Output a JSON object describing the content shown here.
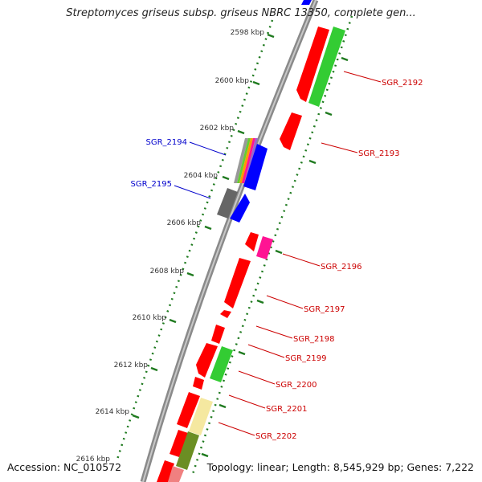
{
  "title": "Streptomyces griseus subsp. griseus NBRC 13350, complete gen...",
  "accession": "Accession: NC_010572",
  "topology": "Topology: linear; Length: 8,545,929 bp; Genes: 7,222",
  "tick_labels": [
    "2598 kbp",
    "2600 kbp",
    "2602 kbp",
    "2604 kbp",
    "2606 kbp",
    "2608 kbp",
    "2610 kbp",
    "2612 kbp",
    "2614 kbp",
    "2616 kbp"
  ],
  "gene_labels": [
    {
      "name": "SGR_2192",
      "strand": "plus",
      "color": "#cc0000"
    },
    {
      "name": "SGR_2193",
      "strand": "plus",
      "color": "#cc0000"
    },
    {
      "name": "SGR_2194",
      "strand": "minus",
      "color": "#0000cc"
    },
    {
      "name": "SGR_2195",
      "strand": "minus",
      "color": "#0000cc"
    },
    {
      "name": "SGR_2196",
      "strand": "plus",
      "color": "#cc0000"
    },
    {
      "name": "SGR_2197",
      "strand": "plus",
      "color": "#cc0000"
    },
    {
      "name": "SGR_2198",
      "strand": "plus",
      "color": "#cc0000"
    },
    {
      "name": "SGR_2199",
      "strand": "plus",
      "color": "#cc0000"
    },
    {
      "name": "SGR_2200",
      "strand": "plus",
      "color": "#cc0000"
    },
    {
      "name": "SGR_2201",
      "strand": "plus",
      "color": "#cc0000"
    },
    {
      "name": "SGR_2202",
      "strand": "plus",
      "color": "#cc0000"
    }
  ],
  "colors": {
    "backbone": "#8a8a8a",
    "tick_dots": "#1f7a1f",
    "forward_gene": "#ff0000",
    "reverse_gene": "#0000ff",
    "green_gene": "#33cc33",
    "magenta_gene": "#ff1493",
    "gray_gene": "#666666",
    "yellow_gene": "#f5e8a0",
    "olive_gene": "#6b8e23",
    "pink_gene": "#f08080"
  }
}
